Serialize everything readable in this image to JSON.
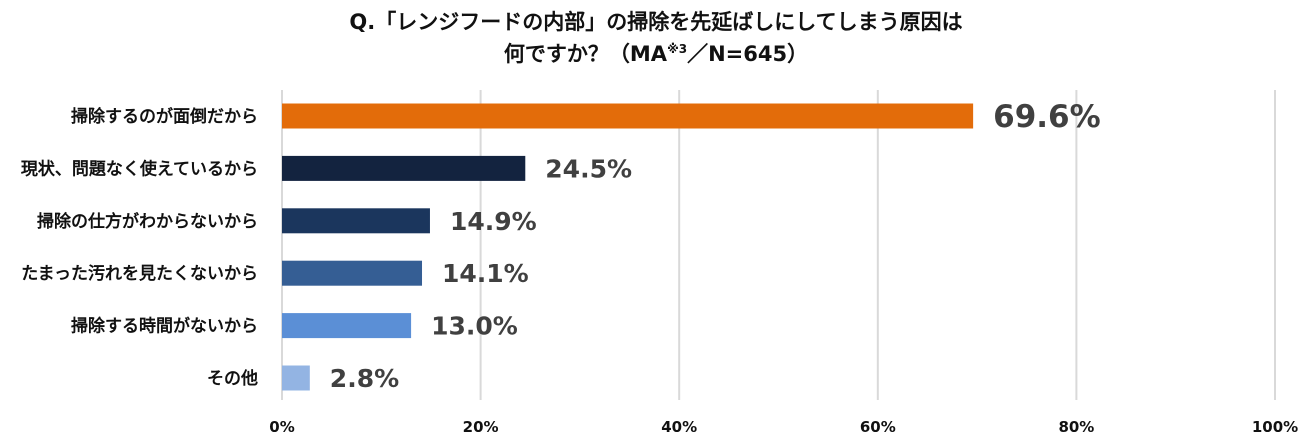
{
  "chart_data": {
    "type": "bar",
    "orientation": "horizontal",
    "title_line1": "Q.「レンジフードの内部」の掃除を先延ばしにしてしまう原因は",
    "title_line2_main": "何ですか？（MA",
    "title_line2_sup": "※3",
    "title_line2_end": "／N=645）",
    "categories": [
      "掃除するのが面倒だから",
      "現状、問題なく使えているから",
      "掃除の仕方がわからないから",
      "たまった汚れを見たくないから",
      "掃除する時間がないから",
      "その他"
    ],
    "values": [
      69.6,
      24.5,
      14.9,
      14.1,
      13.0,
      2.8
    ],
    "value_labels": [
      "69.6%",
      "24.5%",
      "14.9%",
      "14.1%",
      "13.0%",
      "2.8%"
    ],
    "bar_colors": [
      "#E36C0A",
      "#13233F",
      "#1B365D",
      "#355E94",
      "#5B8FD6",
      "#93B4E3"
    ],
    "xlim": [
      0,
      100
    ],
    "x_ticks": [
      0,
      20,
      40,
      60,
      80,
      100
    ],
    "x_tick_labels": [
      "0%",
      "20%",
      "40%",
      "60%",
      "80%",
      "100%"
    ],
    "grid": true,
    "legend": "none"
  }
}
